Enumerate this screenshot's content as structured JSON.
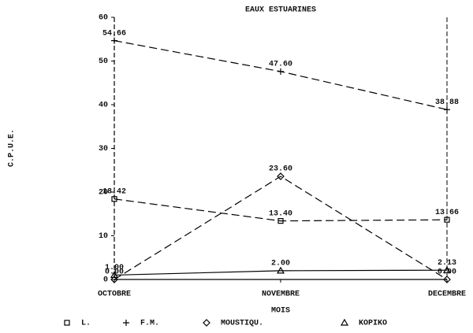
{
  "chart_data": {
    "type": "line",
    "title": "EAUX ESTUARINES",
    "y_label": "C.P.U.E.",
    "x_label": "MOIS",
    "categories": [
      "OCTOBRE",
      "NOVEMBRE",
      "DECEMBRE"
    ],
    "ylim": [
      0,
      60
    ],
    "yticks": [
      0,
      10,
      20,
      30,
      40,
      50,
      60
    ],
    "series": [
      {
        "name": "L.",
        "color": "#000000",
        "marker": "square",
        "line_style": "dashed",
        "values": [
          18.42,
          13.4,
          13.66
        ],
        "value_labels": [
          "18.42",
          "13.40",
          "13.66"
        ]
      },
      {
        "name": "F.M.",
        "color": "#000000",
        "marker": "plus",
        "line_style": "dashed",
        "values": [
          54.66,
          47.6,
          38.88
        ],
        "value_labels": [
          "54.66",
          "47.60",
          "38.88"
        ]
      },
      {
        "name": "MOUSTIQU.",
        "color": "#000000",
        "marker": "diamond",
        "line_style": "dashed",
        "values": [
          0,
          23.6,
          0
        ],
        "value_labels": [
          "0.00",
          "23.60",
          "0.00"
        ]
      },
      {
        "name": "KOPIKO",
        "color": "#000000",
        "marker": "triangle",
        "line_style": "solid",
        "values": [
          1,
          2,
          2.13
        ],
        "value_labels": [
          "1.00",
          "2.00",
          "2.13"
        ]
      }
    ]
  }
}
